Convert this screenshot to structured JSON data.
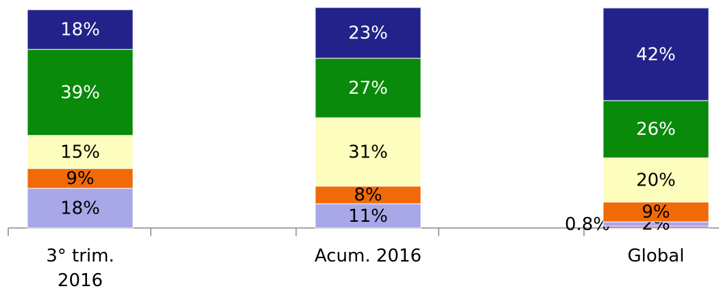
{
  "chart_data": {
    "type": "stacked_bar",
    "categories": [
      "3° trim. 2016",
      "Acum. 2016",
      "Global"
    ],
    "series": [
      {
        "color": "#c040a0",
        "values": [
          null,
          null,
          0.8
        ],
        "value_labels": [
          null,
          null,
          "0.8%"
        ]
      },
      {
        "color": "#a8a8e8",
        "values": [
          18,
          11,
          2
        ],
        "value_labels": [
          "18%",
          "11%",
          "2%"
        ]
      },
      {
        "color": "#f06a08",
        "values": [
          9,
          8,
          9
        ],
        "value_labels": [
          "9%",
          "8%",
          "9%"
        ]
      },
      {
        "color": "#fdfdbe",
        "values": [
          15,
          31,
          20
        ],
        "value_labels": [
          "15%",
          "31%",
          "20%"
        ]
      },
      {
        "color": "#0a8a0a",
        "values": [
          39,
          27,
          26
        ],
        "value_labels": [
          "39%",
          "27%",
          "26%"
        ]
      },
      {
        "color": "#22228a",
        "values": [
          18,
          23,
          42
        ],
        "value_labels": [
          "18%",
          "23%",
          "42%"
        ]
      }
    ]
  }
}
